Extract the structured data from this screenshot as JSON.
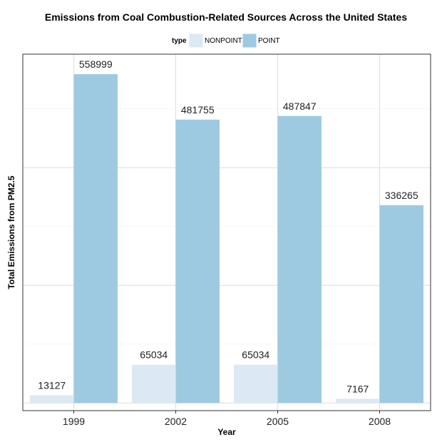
{
  "chart_data": {
    "type": "bar",
    "title": "Emissions from Coal Combustion-Related Sources Across the United States",
    "xlabel": "Year",
    "ylabel": "Total Emissions from PM2.5",
    "categories": [
      "1999",
      "2002",
      "2005",
      "2008"
    ],
    "series": [
      {
        "name": "NONPOINT",
        "color": "#dce9f4",
        "values": [
          13127,
          65034,
          65034,
          7167
        ]
      },
      {
        "name": "POINT",
        "color": "#9ecae1",
        "values": [
          558999,
          481755,
          487847,
          336265
        ]
      }
    ],
    "legend": {
      "title": "type",
      "position": "top"
    },
    "ylim": [
      -13000,
      593000
    ],
    "grid": true,
    "y_tick_labels_shown": false
  }
}
